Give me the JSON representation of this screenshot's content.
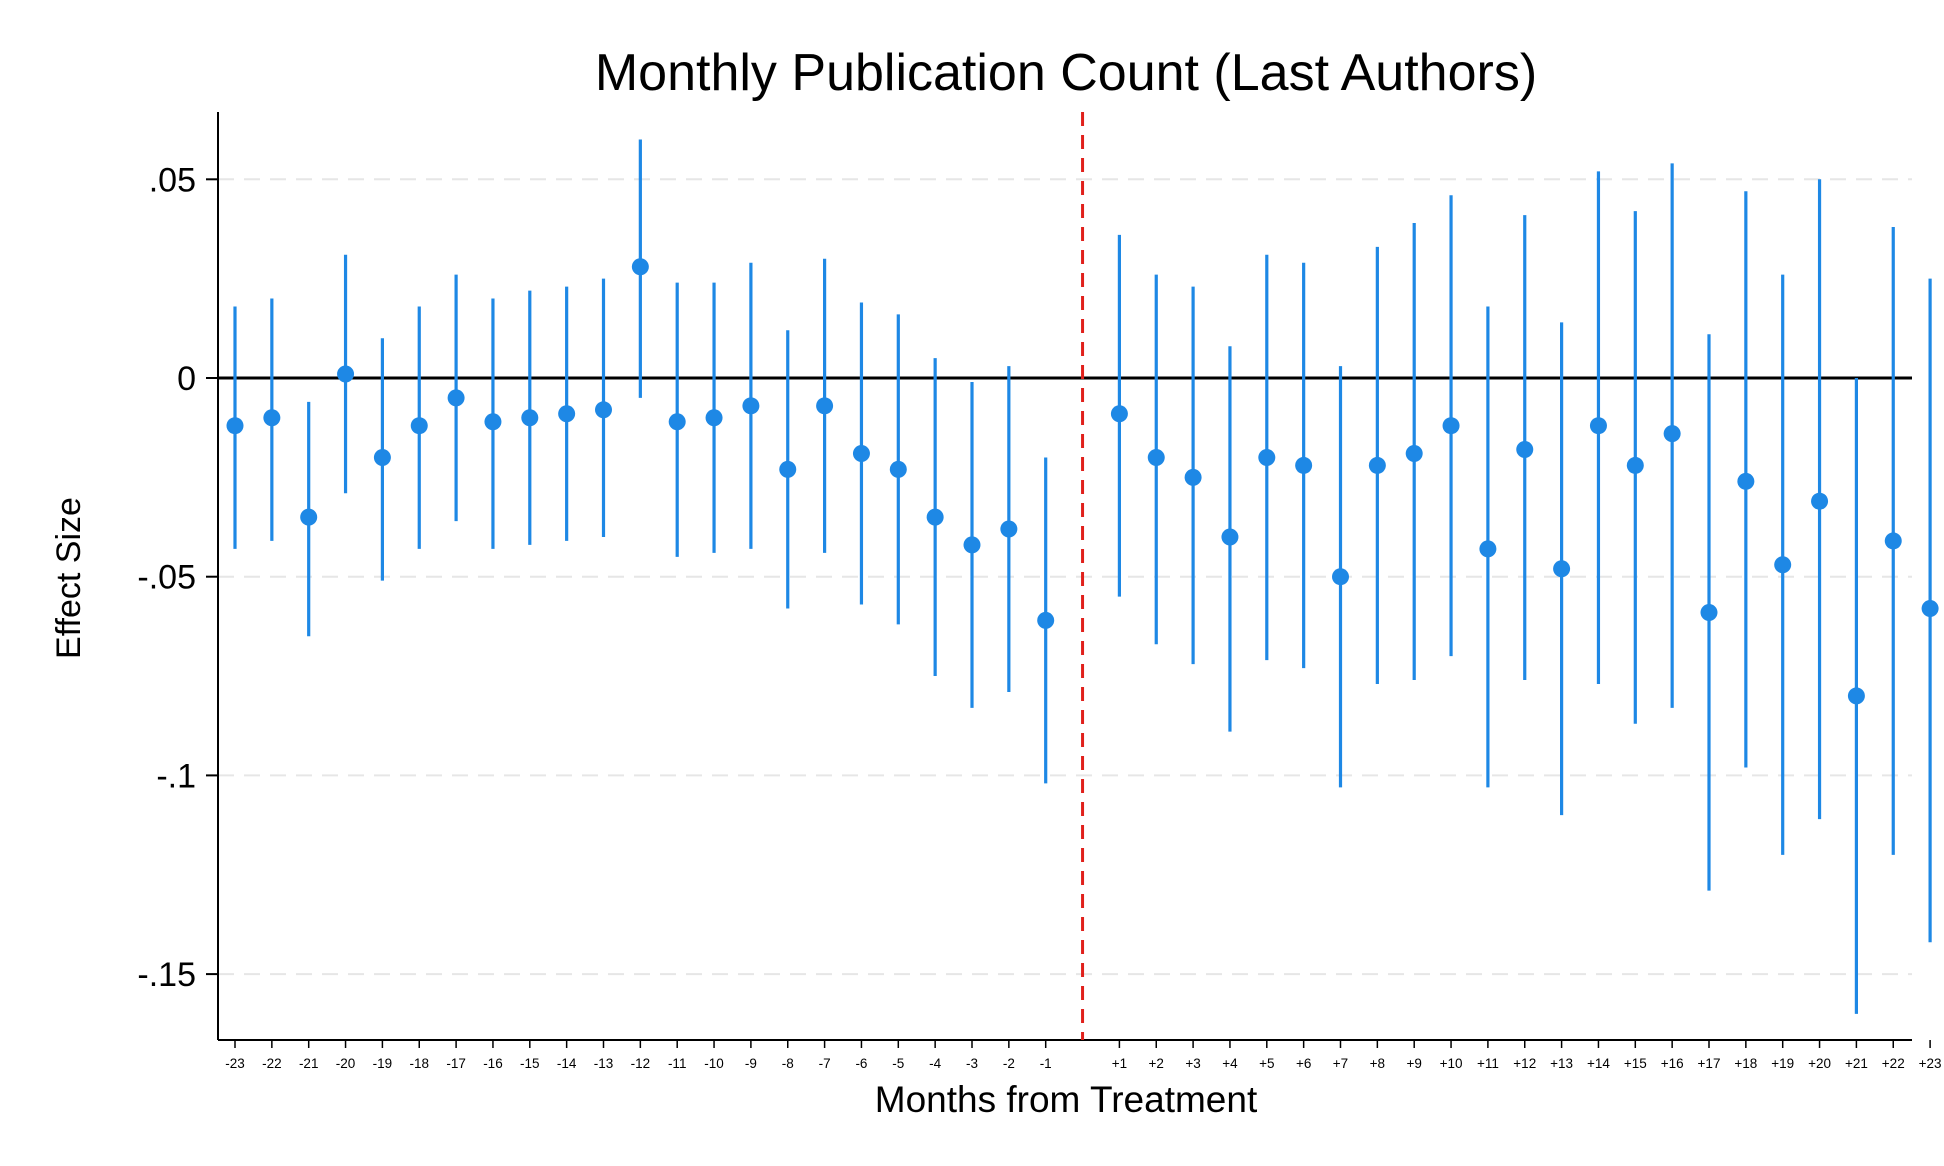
{
  "chart_data": {
    "type": "scatter",
    "title": "Monthly Publication Count (Last Authors)",
    "xlabel": "Months from Treatment",
    "ylabel": "Effect Size",
    "ylim": [
      -0.167,
      0.067
    ],
    "yticks": [
      0.05,
      0,
      -0.05,
      -0.1,
      -0.15
    ],
    "ytick_labels": [
      ".05",
      "0",
      "-.05",
      "-.1",
      "-.15"
    ],
    "grid": true,
    "reference_line_y": 0,
    "treatment_line_after": "-1",
    "colors": {
      "marker": "#1e88e5",
      "ci": "#1e88e5",
      "treatment_line": "#e0201b",
      "zero_line": "#000000",
      "grid": "#e6e6e6"
    },
    "categories": [
      "-23",
      "-22",
      "-21",
      "-20",
      "-19",
      "-18",
      "-17",
      "-16",
      "-15",
      "-14",
      "-13",
      "-12",
      "-11",
      "-10",
      "-9",
      "-8",
      "-7",
      "-6",
      "-5",
      "-4",
      "-3",
      "-2",
      "-1",
      "+1",
      "+2",
      "+3",
      "+4",
      "+5",
      "+6",
      "+7",
      "+8",
      "+9",
      "+10",
      "+11",
      "+12",
      "+13",
      "+14",
      "+15",
      "+16",
      "+17",
      "+18",
      "+19",
      "+20",
      "+21",
      "+22",
      "+23"
    ],
    "series": [
      {
        "estimate": [
          -0.012,
          -0.01,
          -0.035,
          0.001,
          -0.02,
          -0.012,
          -0.005,
          -0.011,
          -0.01,
          -0.009,
          -0.008,
          0.028,
          -0.011,
          -0.01,
          -0.007,
          -0.023,
          -0.007,
          -0.019,
          -0.023,
          -0.035,
          -0.042,
          -0.038,
          -0.061,
          -0.009,
          -0.02,
          -0.025,
          -0.04,
          -0.02,
          -0.022,
          -0.05,
          -0.022,
          -0.019,
          -0.012,
          -0.043,
          -0.018,
          -0.048,
          -0.012,
          -0.022,
          -0.014,
          -0.059,
          -0.026,
          -0.047,
          -0.031,
          -0.08,
          -0.041,
          -0.058
        ],
        "ci_low": [
          -0.043,
          -0.041,
          -0.065,
          -0.029,
          -0.051,
          -0.043,
          -0.036,
          -0.043,
          -0.042,
          -0.041,
          -0.04,
          -0.005,
          -0.045,
          -0.044,
          -0.043,
          -0.058,
          -0.044,
          -0.057,
          -0.062,
          -0.075,
          -0.083,
          -0.079,
          -0.102,
          -0.055,
          -0.067,
          -0.072,
          -0.089,
          -0.071,
          -0.073,
          -0.103,
          -0.077,
          -0.076,
          -0.07,
          -0.103,
          -0.076,
          -0.11,
          -0.077,
          -0.087,
          -0.083,
          -0.129,
          -0.098,
          -0.12,
          -0.111,
          -0.16,
          -0.12,
          -0.142
        ],
        "ci_high": [
          0.018,
          0.02,
          -0.006,
          0.031,
          0.01,
          0.018,
          0.026,
          0.02,
          0.022,
          0.023,
          0.025,
          0.06,
          0.024,
          0.024,
          0.029,
          0.012,
          0.03,
          0.019,
          0.016,
          0.005,
          -0.001,
          0.003,
          -0.02,
          0.036,
          0.026,
          0.023,
          0.008,
          0.031,
          0.029,
          0.003,
          0.033,
          0.039,
          0.046,
          0.018,
          0.041,
          0.014,
          0.052,
          0.042,
          0.054,
          0.011,
          0.047,
          0.026,
          0.05,
          0.0,
          0.038,
          0.025
        ]
      }
    ]
  }
}
